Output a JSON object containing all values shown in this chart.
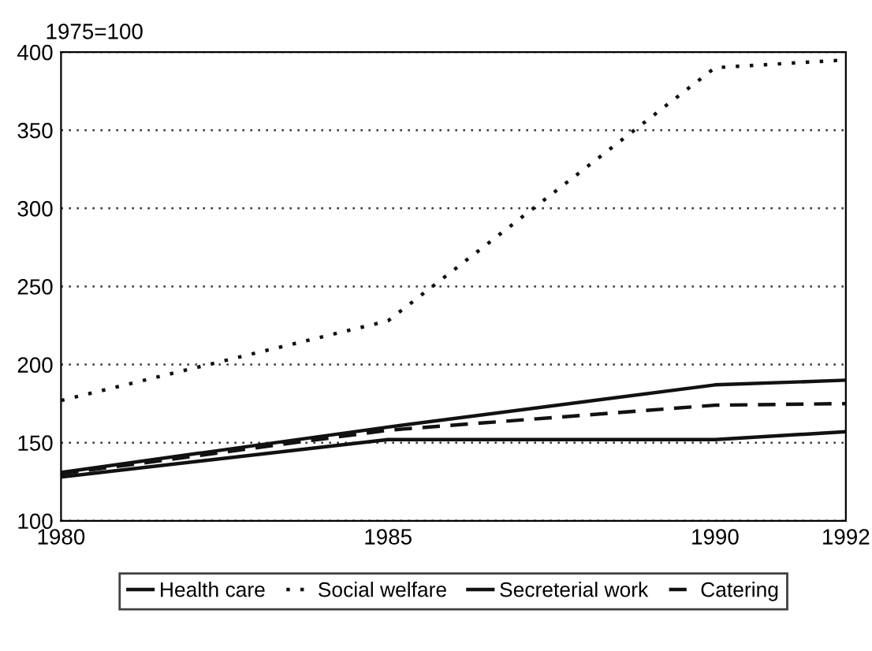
{
  "chart_data": {
    "type": "line",
    "title": "1975=100",
    "x": [
      1980,
      1985,
      1990,
      1992
    ],
    "series": [
      {
        "name": "Health care",
        "color": "#111111",
        "line_style": "solid",
        "values": [
          131,
          160,
          187,
          190
        ]
      },
      {
        "name": "Social welfare",
        "color": "#111111",
        "line_style": "dotted",
        "values": [
          177,
          228,
          390,
          395
        ]
      },
      {
        "name": "Secreterial work",
        "color": "#111111",
        "line_style": "solid",
        "values": [
          128,
          152,
          152,
          157
        ]
      },
      {
        "name": "Catering",
        "color": "#111111",
        "line_style": "dashed",
        "values": [
          130,
          158,
          174,
          175
        ]
      }
    ],
    "xlim": [
      1980,
      1992
    ],
    "xticks": [
      1980,
      1985,
      1990,
      1992
    ],
    "ylim": [
      100,
      400
    ],
    "yticks": [
      100,
      150,
      200,
      250,
      300,
      350,
      400
    ],
    "grid": "y",
    "legend": "bottom",
    "marker": "none"
  }
}
